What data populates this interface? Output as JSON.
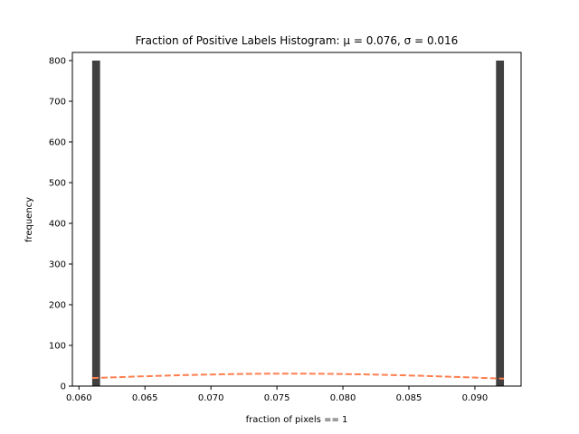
{
  "chart_data": {
    "type": "bar",
    "title": "Fraction of Positive Labels Histogram",
    "title_stats": ": μ = 0.076,  σ = 0.016",
    "xlabel": "fraction of pixels == 1",
    "ylabel": "frequency",
    "xlim": [
      0.0595,
      0.0935
    ],
    "ylim": [
      0,
      820
    ],
    "xticks": [
      0.06,
      0.065,
      0.07,
      0.075,
      0.08,
      0.085,
      0.09
    ],
    "xtick_labels": [
      "0.060",
      "0.065",
      "0.070",
      "0.075",
      "0.080",
      "0.085",
      "0.090"
    ],
    "yticks": [
      0,
      100,
      200,
      300,
      400,
      500,
      600,
      700,
      800
    ],
    "ytick_labels": [
      "0",
      "100",
      "200",
      "300",
      "400",
      "500",
      "600",
      "700",
      "800"
    ],
    "bars": [
      {
        "x_start": 0.061,
        "x_end": 0.0616,
        "count": 800
      },
      {
        "x_start": 0.0916,
        "x_end": 0.0922,
        "count": 800
      }
    ],
    "fit_curve": {
      "mu": 0.076,
      "sigma": 0.016,
      "x_start": 0.061,
      "x_end": 0.0922,
      "scale": 1.2256
    },
    "colors": {
      "bar": "#404040",
      "fit_line": "#ff7f50",
      "axis": "#000000"
    },
    "grid": false
  }
}
